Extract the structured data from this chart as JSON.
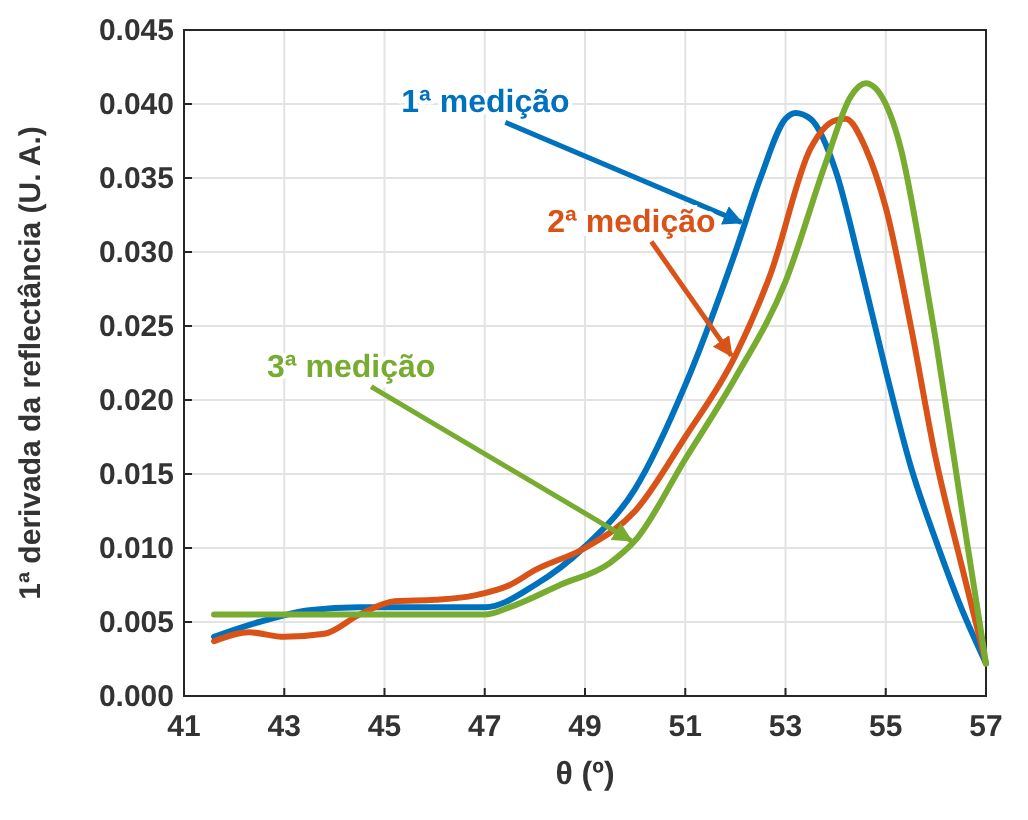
{
  "chart_data": {
    "type": "line",
    "xlabel": "θ (º)",
    "ylabel": "1ª derivada da reflectância (U. A.)",
    "xlim": [
      41,
      57
    ],
    "xticks": [
      41,
      43,
      45,
      47,
      49,
      51,
      53,
      55,
      57
    ],
    "ylim": [
      0,
      0.045
    ],
    "yticks": [
      {
        "value": 0,
        "label": "0.000"
      },
      0.005,
      {
        "value": 0.01,
        "label": "0.010"
      },
      0.015,
      {
        "value": 0.02,
        "label": "0.020"
      },
      0.025,
      {
        "value": 0.03,
        "label": "0.030"
      },
      0.035,
      {
        "value": 0.04,
        "label": "0.040"
      },
      0.045
    ],
    "grid": true,
    "marker": "none",
    "line_style": "solid",
    "series": [
      {
        "name": "1ª medição",
        "color": "#0072bd",
        "x": [
          41.6,
          42.5,
          43.5,
          44.5,
          45.5,
          46.5,
          47,
          48,
          49,
          50,
          51,
          52,
          52.5,
          53,
          53.2,
          53.5,
          54,
          54.5,
          55,
          55.5,
          56,
          56.5,
          57
        ],
        "values": [
          0.004,
          0.005,
          0.0058,
          0.006,
          0.006,
          0.006,
          0.006,
          0.0075,
          0.0101,
          0.014,
          0.021,
          0.03,
          0.035,
          0.039,
          0.0394,
          0.039,
          0.0355,
          0.029,
          0.022,
          0.0155,
          0.0105,
          0.006,
          0.0022
        ]
      },
      {
        "name": "2ª medição",
        "color": "#d95319",
        "x": [
          41.6,
          42.3,
          43,
          43.8,
          44.5,
          45.2,
          46,
          46.8,
          47.5,
          48,
          49,
          50,
          51,
          52,
          52.7,
          53.5,
          54,
          54.2,
          54.6,
          55,
          55.5,
          56,
          56.5,
          57
        ],
        "values": [
          0.0037,
          0.0043,
          0.004,
          0.0042,
          0.0055,
          0.0064,
          0.0065,
          0.0068,
          0.0075,
          0.0085,
          0.01,
          0.0125,
          0.0175,
          0.023,
          0.0285,
          0.037,
          0.0389,
          0.039,
          0.037,
          0.033,
          0.025,
          0.016,
          0.009,
          0.0022
        ]
      },
      {
        "name": "3ª medição",
        "color": "#77ac30",
        "x": [
          41.6,
          43,
          45,
          47,
          47.5,
          48.5,
          49.5,
          50,
          51,
          52,
          53,
          53.8,
          54.3,
          54.6,
          55,
          55.3,
          55.7,
          56,
          56.5,
          57
        ],
        "values": [
          0.0055,
          0.0055,
          0.0055,
          0.0055,
          0.006,
          0.0075,
          0.009,
          0.0105,
          0.016,
          0.0215,
          0.028,
          0.036,
          0.0405,
          0.0414,
          0.04,
          0.037,
          0.03,
          0.024,
          0.013,
          0.0022
        ]
      }
    ]
  }
}
